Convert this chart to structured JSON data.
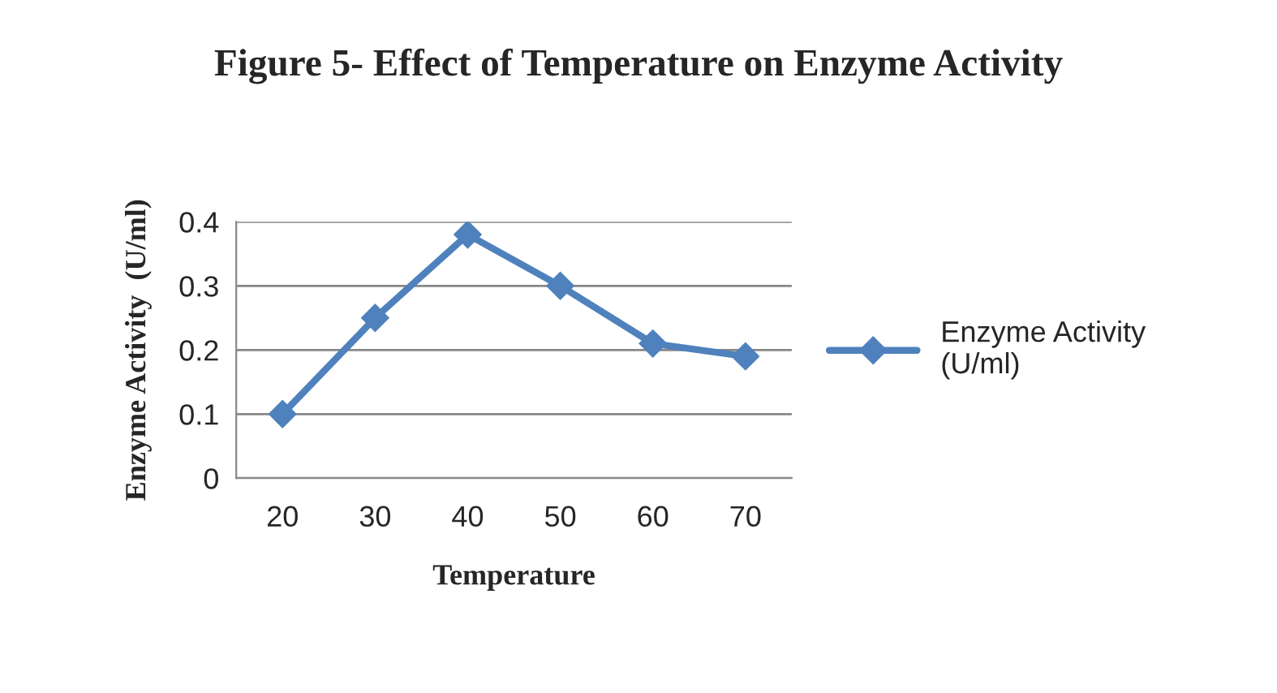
{
  "chart_data": {
    "type": "line",
    "title": "Figure 5- Effect of Temperature on Enzyme Activity",
    "xlabel": "Temperature",
    "ylabel": "Enzyme Activity  (U/ml)",
    "categories": [
      "20",
      "30",
      "40",
      "50",
      "60",
      "70"
    ],
    "series": [
      {
        "name": "Enzyme Activity (U/ml)",
        "color": "#4f81bd",
        "values": [
          0.1,
          0.25,
          0.38,
          0.3,
          0.21,
          0.19
        ]
      }
    ],
    "ylim": [
      0,
      0.4
    ],
    "yticks": [
      {
        "value": 0,
        "label": "0"
      },
      0.1,
      0.2,
      0.3,
      0.4
    ],
    "grid": "y",
    "legend": "right",
    "marker": "diamond",
    "line_style": "solid"
  }
}
